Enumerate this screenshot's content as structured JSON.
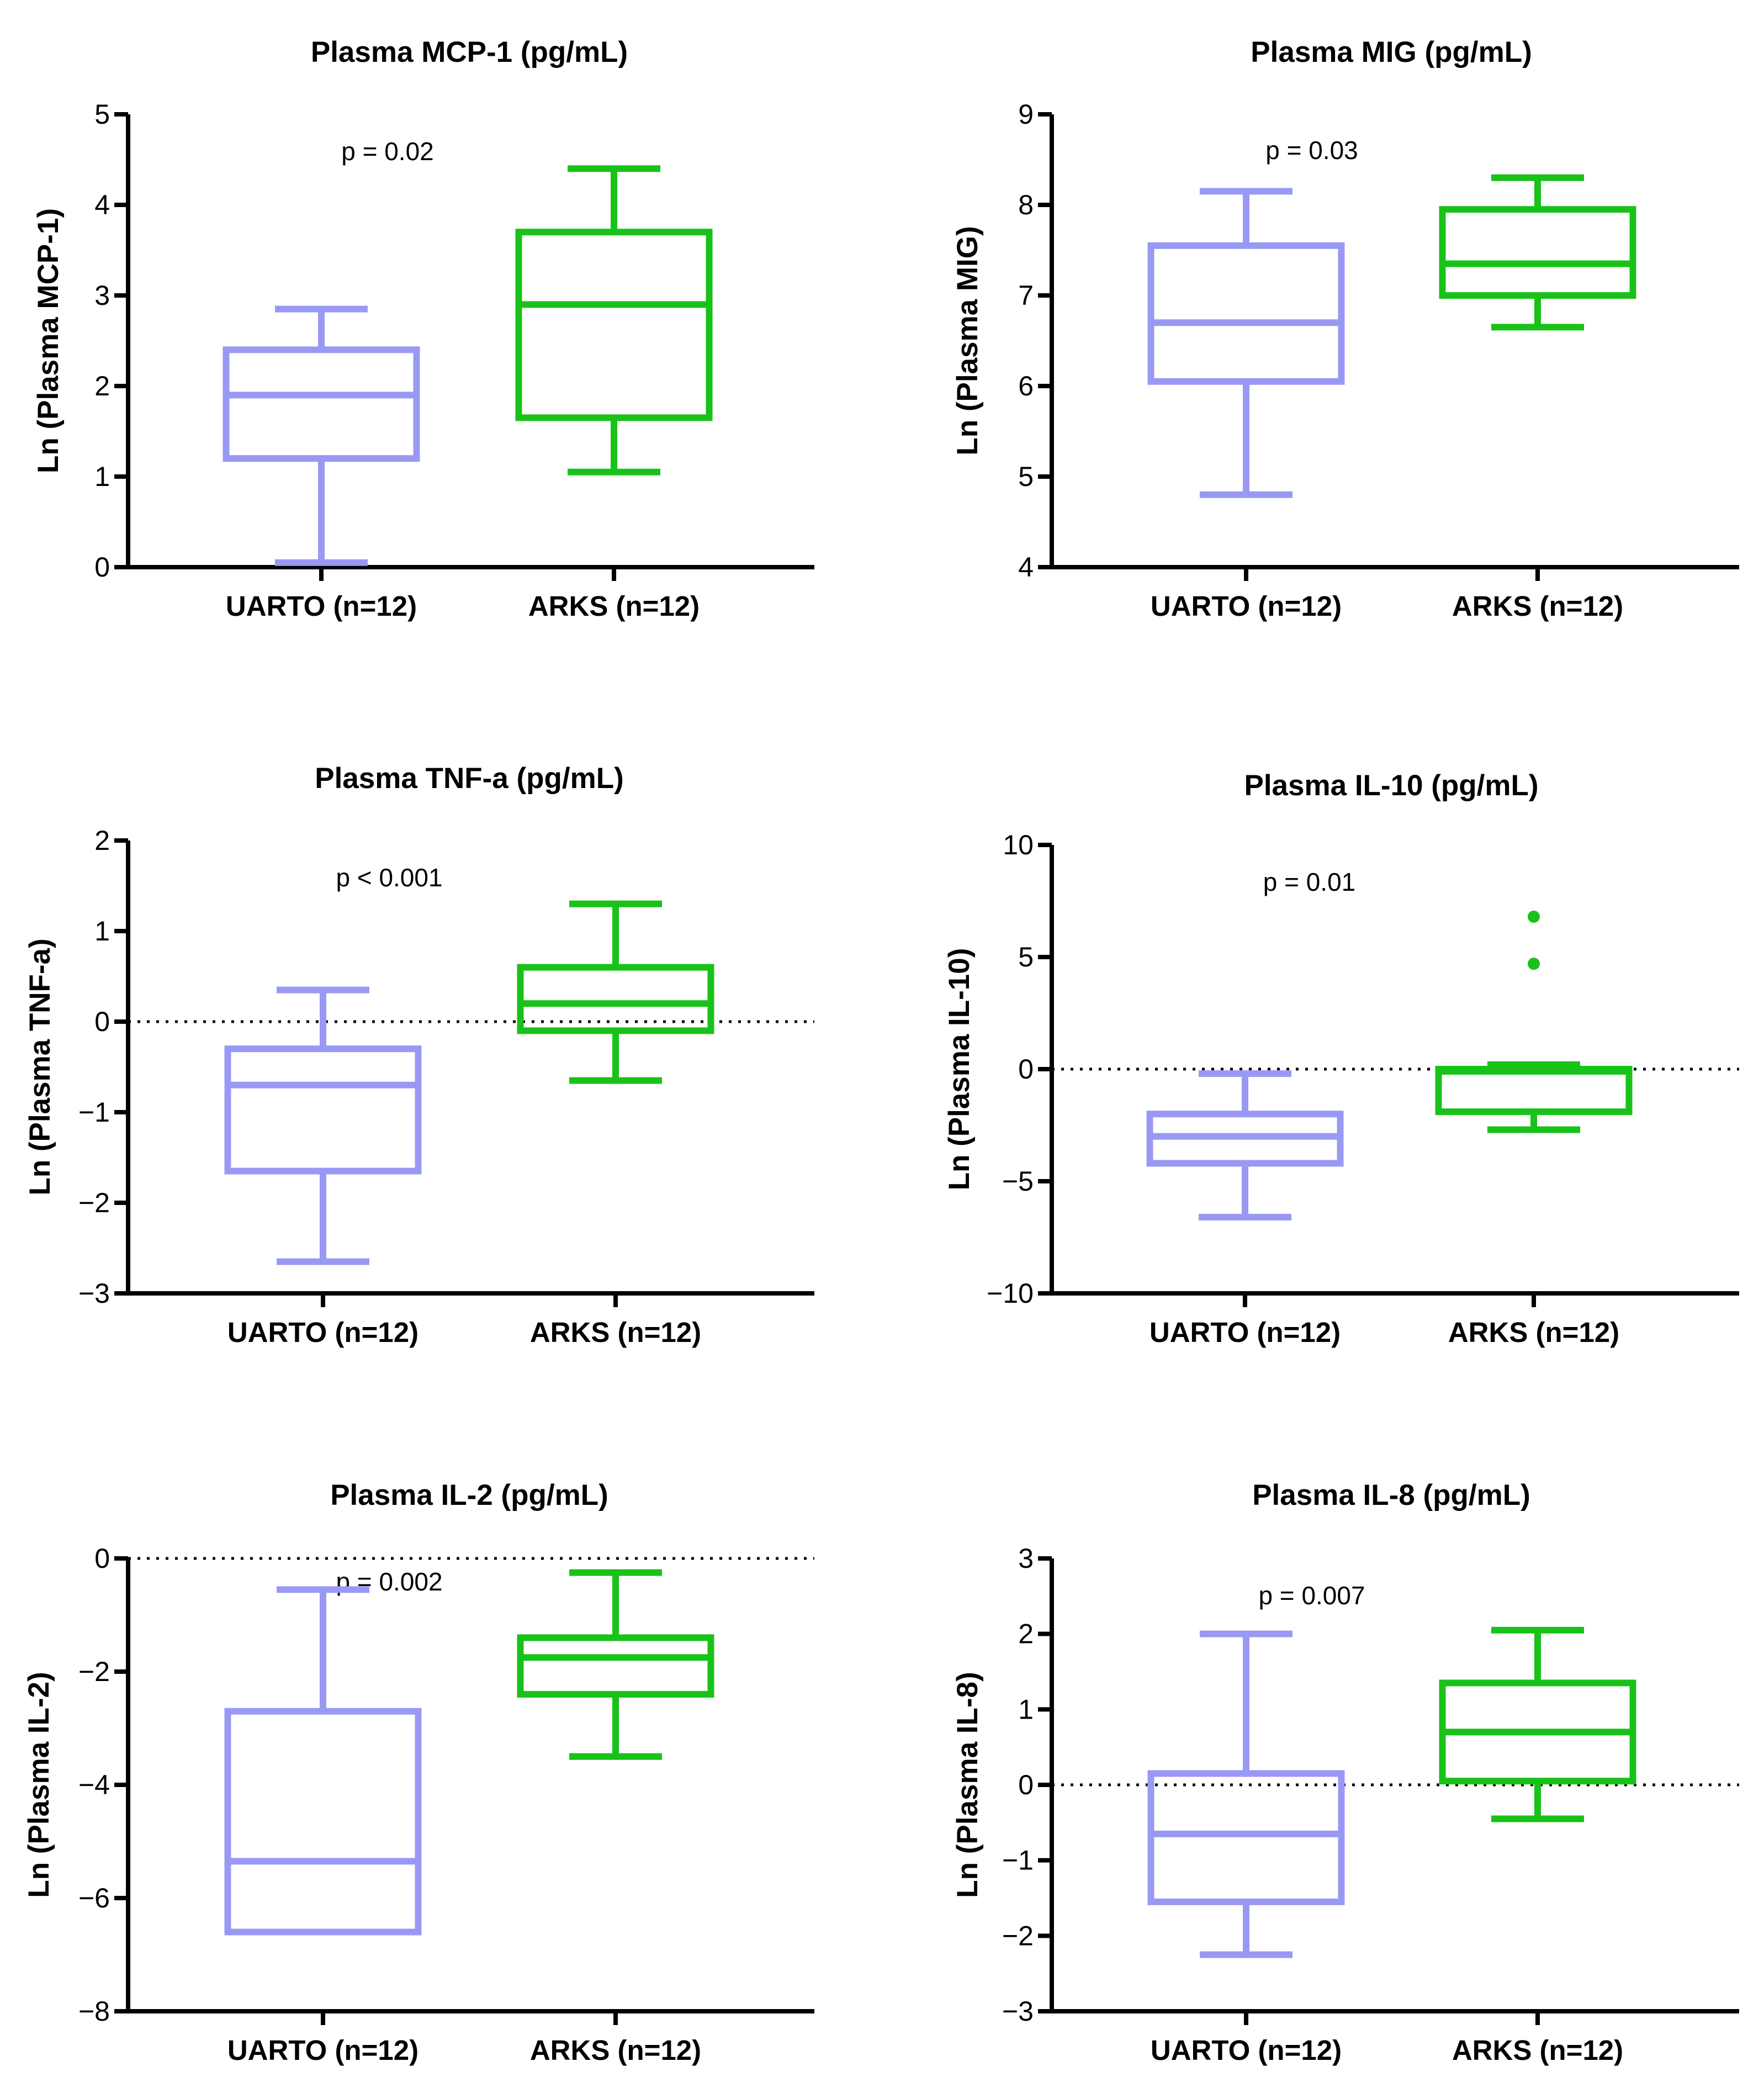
{
  "colors": {
    "UARTO": "#9999f5",
    "ARKS": "#19c219",
    "axis": "#000000"
  },
  "chart_data": [
    {
      "type": "box",
      "title": "Plasma MCP-1 (pg/mL)",
      "ylabel": "Ln (Plasma MCP-1)",
      "xlabel": "",
      "categories": [
        "UARTO (n=12)",
        "ARKS (n=12)"
      ],
      "ylim": [
        0,
        5
      ],
      "yticks": [
        0,
        1,
        2,
        3,
        4,
        5
      ],
      "ytick_labels": [
        "0",
        "1",
        "2",
        "3",
        "4",
        "5"
      ],
      "reference_line": null,
      "p_value": "p = 0.02",
      "series": [
        {
          "name": "UARTO (n=12)",
          "whisker_low": 0.05,
          "q1": 1.2,
          "median": 1.9,
          "q3": 2.4,
          "whisker_high": 2.85,
          "outliers": []
        },
        {
          "name": "ARKS (n=12)",
          "whisker_low": 1.05,
          "q1": 1.65,
          "median": 2.9,
          "q3": 3.7,
          "whisker_high": 4.4,
          "outliers": []
        }
      ]
    },
    {
      "type": "box",
      "title": "Plasma MIG (pg/mL)",
      "ylabel": "Ln (Plasma MIG)",
      "xlabel": "",
      "categories": [
        "UARTO (n=12)",
        "ARKS (n=12)"
      ],
      "ylim": [
        4,
        9
      ],
      "yticks": [
        4,
        5,
        6,
        7,
        8,
        9
      ],
      "ytick_labels": [
        "4",
        "5",
        "6",
        "7",
        "8",
        "9"
      ],
      "reference_line": null,
      "p_value": "p = 0.03",
      "series": [
        {
          "name": "UARTO (n=12)",
          "whisker_low": 4.8,
          "q1": 6.05,
          "median": 6.7,
          "q3": 7.55,
          "whisker_high": 8.15,
          "outliers": []
        },
        {
          "name": "ARKS (n=12)",
          "whisker_low": 6.65,
          "q1": 7.0,
          "median": 7.35,
          "q3": 7.95,
          "whisker_high": 8.3,
          "outliers": []
        }
      ]
    },
    {
      "type": "box",
      "title": "Plasma TNF-a (pg/mL)",
      "ylabel": "Ln (Plasma TNF-a)",
      "xlabel": "",
      "categories": [
        "UARTO (n=12)",
        "ARKS (n=12)"
      ],
      "ylim": [
        -3,
        2
      ],
      "yticks": [
        -3,
        -2,
        -1,
        0,
        1,
        2
      ],
      "ytick_labels": [
        "−3",
        "−2",
        "−1",
        "0",
        "1",
        "2"
      ],
      "reference_line": 0,
      "p_value": "p < 0.001",
      "series": [
        {
          "name": "UARTO (n=12)",
          "whisker_low": -2.65,
          "q1": -1.65,
          "median": -0.7,
          "q3": -0.3,
          "whisker_high": 0.35,
          "outliers": []
        },
        {
          "name": "ARKS (n=12)",
          "whisker_low": -0.65,
          "q1": -0.1,
          "median": 0.2,
          "q3": 0.6,
          "whisker_high": 1.3,
          "outliers": []
        }
      ]
    },
    {
      "type": "box",
      "title": "Plasma IL-10 (pg/mL)",
      "ylabel": "Ln (Plasma IL-10)",
      "xlabel": "",
      "categories": [
        "UARTO (n=12)",
        "ARKS (n=12)"
      ],
      "ylim": [
        -10,
        10
      ],
      "yticks": [
        -10,
        -5,
        0,
        5,
        10
      ],
      "ytick_labels": [
        "−10",
        "−5",
        "0",
        "5",
        "10"
      ],
      "reference_line": 0,
      "p_value": "p = 0.01",
      "series": [
        {
          "name": "UARTO (n=12)",
          "whisker_low": -6.6,
          "q1": -4.2,
          "median": -3.0,
          "q3": -2.0,
          "whisker_high": -0.2,
          "outliers": []
        },
        {
          "name": "ARKS (n=12)",
          "whisker_low": -2.7,
          "q1": -1.9,
          "median": -0.1,
          "q3": 0.0,
          "whisker_high": 0.2,
          "outliers": [
            4.7,
            6.8
          ]
        }
      ]
    },
    {
      "type": "box",
      "title": "Plasma IL-2 (pg/mL)",
      "ylabel": "Ln (Plasma IL-2)",
      "xlabel": "",
      "categories": [
        "UARTO (n=12)",
        "ARKS (n=12)"
      ],
      "ylim": [
        -8,
        0
      ],
      "yticks": [
        -8,
        -6,
        -4,
        -2,
        0
      ],
      "ytick_labels": [
        "−8",
        "−6",
        "−4",
        "−2",
        "0"
      ],
      "reference_line": 0,
      "p_value": "p = 0.002",
      "series": [
        {
          "name": "UARTO (n=12)",
          "whisker_low": -6.6,
          "q1": -6.6,
          "median": -5.35,
          "q3": -2.7,
          "whisker_high": -0.55,
          "outliers": []
        },
        {
          "name": "ARKS (n=12)",
          "whisker_low": -3.5,
          "q1": -2.4,
          "median": -1.75,
          "q3": -1.4,
          "whisker_high": -0.25,
          "outliers": []
        }
      ]
    },
    {
      "type": "box",
      "title": "Plasma IL-8 (pg/mL)",
      "ylabel": "Ln (Plasma IL-8)",
      "xlabel": "",
      "categories": [
        "UARTO (n=12)",
        "ARKS (n=12)"
      ],
      "ylim": [
        -3,
        3
      ],
      "yticks": [
        -3,
        -2,
        -1,
        0,
        1,
        2,
        3
      ],
      "ytick_labels": [
        "−3",
        "−2",
        "−1",
        "0",
        "1",
        "2",
        "3"
      ],
      "reference_line": 0,
      "p_value": "p = 0.007",
      "series": [
        {
          "name": "UARTO (n=12)",
          "whisker_low": -2.25,
          "q1": -1.55,
          "median": -0.65,
          "q3": 0.15,
          "whisker_high": 2.0,
          "outliers": []
        },
        {
          "name": "ARKS (n=12)",
          "whisker_low": -0.45,
          "q1": 0.05,
          "median": 0.7,
          "q3": 1.35,
          "whisker_high": 2.05,
          "outliers": []
        }
      ]
    }
  ]
}
